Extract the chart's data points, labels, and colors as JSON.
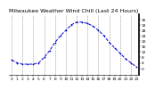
{
  "title": "Milwaukee Weather Wind Chill (Last 24 Hours)",
  "hours": [
    0,
    1,
    2,
    3,
    4,
    5,
    6,
    7,
    8,
    9,
    10,
    11,
    12,
    13,
    14,
    15,
    16,
    17,
    18,
    19,
    20,
    21,
    22,
    23
  ],
  "values": [
    6,
    4,
    3,
    3,
    3,
    4,
    8,
    13,
    19,
    24,
    28,
    32,
    34,
    34,
    33,
    31,
    28,
    24,
    19,
    15,
    11,
    7,
    4,
    1
  ],
  "line_color": "#0000cc",
  "marker_color": "#0000cc",
  "bg_color": "#ffffff",
  "grid_color": "#999999",
  "title_color": "#000000",
  "ylim": [
    -5,
    40
  ],
  "ytick_values": [
    0,
    4,
    8,
    12,
    16,
    20,
    24,
    28,
    32,
    36
  ],
  "ytick_labels": [
    "0",
    "4",
    "8",
    "12",
    "16",
    "20",
    "24",
    "28",
    "32",
    "36"
  ],
  "title_fontsize": 4.5,
  "tick_fontsize": 3.2,
  "line_width": 0.7,
  "marker_size": 1.8
}
